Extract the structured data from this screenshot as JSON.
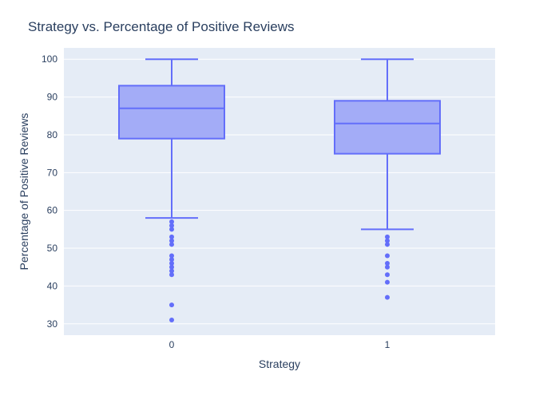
{
  "chart_data": {
    "type": "box",
    "title": "Strategy vs. Percentage of Positive Reviews",
    "xlabel": "Strategy",
    "ylabel": "Percentage of Positive Reviews",
    "ylim": [
      27,
      103
    ],
    "y_ticks": [
      30,
      40,
      50,
      60,
      70,
      80,
      90,
      100
    ],
    "grid": true,
    "colors": {
      "plot_bg": "#e5ecf6",
      "grid": "#ffffff",
      "box_fill": "#a3acf7",
      "box_line": "#636efa",
      "text": "#2a3f5f"
    },
    "categories": [
      "0",
      "1"
    ],
    "boxes": [
      {
        "category": "0",
        "q1": 79,
        "median": 87,
        "q3": 93,
        "lower_fence": 58,
        "upper_fence": 100,
        "outliers": [
          57,
          56,
          55,
          53,
          52,
          51,
          48,
          47,
          46,
          45,
          44,
          43,
          35,
          31
        ]
      },
      {
        "category": "1",
        "q1": 75,
        "median": 83,
        "q3": 89,
        "lower_fence": 55,
        "upper_fence": 100,
        "outliers": [
          53,
          52,
          51,
          48,
          46,
          45,
          43,
          41,
          37
        ]
      }
    ]
  }
}
